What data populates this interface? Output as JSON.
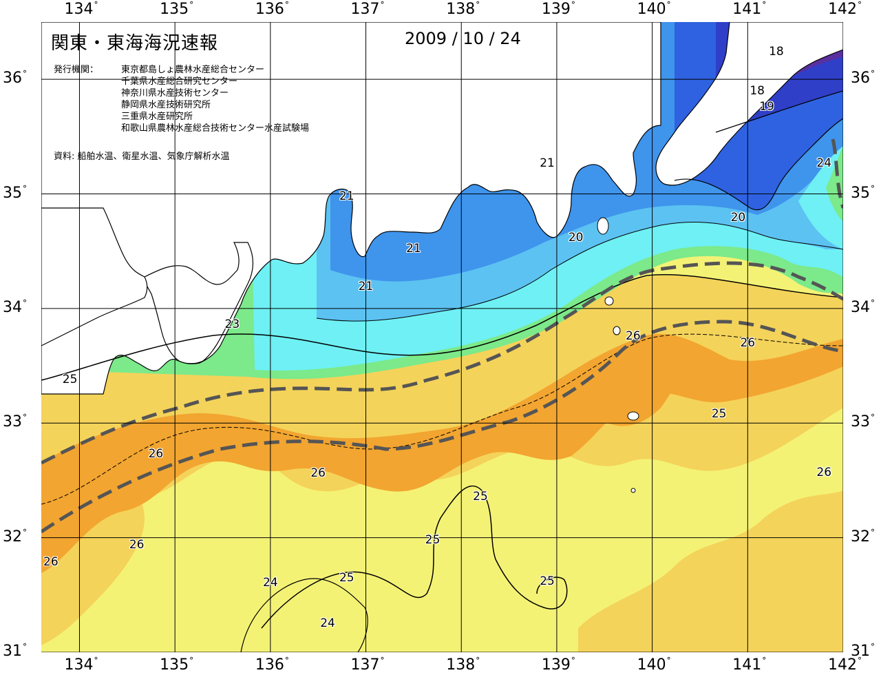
{
  "title": "関東・東海海況速報",
  "date": "2009 / 10 / 24",
  "issuer_label": "発行機関：",
  "issuers": [
    "東京都島しょ農林水産総合センター",
    "千葉県水産総合研究センター",
    "神奈川県水産技術センター",
    "静岡県水産技術研究所",
    "三重県水産研究所",
    "和歌山県農林水産総合技術センター水産試験場"
  ],
  "source": "資料: 船舶水温、衛星水温、気象庁解析水温",
  "axes": {
    "longitudes": [
      "134°",
      "135°",
      "136°",
      "137°",
      "138°",
      "139°",
      "140°",
      "141°",
      "142°"
    ],
    "latitudes": [
      "36°",
      "35°",
      "34°",
      "33°",
      "32°",
      "31°"
    ],
    "lon_range": [
      133.6,
      142.0
    ],
    "lat_range": [
      31.0,
      36.5
    ]
  },
  "contour_labels": [
    {
      "text": "18",
      "lon": 141.3,
      "lat": 36.24
    },
    {
      "text": "18",
      "lon": 141.1,
      "lat": 35.9
    },
    {
      "text": "19",
      "lon": 141.2,
      "lat": 35.76
    },
    {
      "text": "24",
      "lon": 141.8,
      "lat": 35.27
    },
    {
      "text": "21",
      "lon": 138.9,
      "lat": 35.27
    },
    {
      "text": "21",
      "lon": 136.8,
      "lat": 34.98
    },
    {
      "text": "20",
      "lon": 140.9,
      "lat": 34.79
    },
    {
      "text": "20",
      "lon": 139.2,
      "lat": 34.62
    },
    {
      "text": "21",
      "lon": 137.5,
      "lat": 34.52
    },
    {
      "text": "21",
      "lon": 137.0,
      "lat": 34.19
    },
    {
      "text": "23",
      "lon": 135.6,
      "lat": 33.86
    },
    {
      "text": "26",
      "lon": 139.8,
      "lat": 33.76
    },
    {
      "text": "26",
      "lon": 141.0,
      "lat": 33.7
    },
    {
      "text": "25",
      "lon": 133.9,
      "lat": 33.38
    },
    {
      "text": "25",
      "lon": 140.7,
      "lat": 33.08
    },
    {
      "text": "26",
      "lon": 134.8,
      "lat": 32.73
    },
    {
      "text": "26",
      "lon": 136.5,
      "lat": 32.56
    },
    {
      "text": "26",
      "lon": 141.8,
      "lat": 32.57
    },
    {
      "text": "25",
      "lon": 138.2,
      "lat": 32.36
    },
    {
      "text": "26",
      "lon": 134.6,
      "lat": 31.94
    },
    {
      "text": "25",
      "lon": 137.7,
      "lat": 31.98
    },
    {
      "text": "26",
      "lon": 133.7,
      "lat": 31.79
    },
    {
      "text": "25",
      "lon": 136.8,
      "lat": 31.65
    },
    {
      "text": "24",
      "lon": 136.0,
      "lat": 31.61
    },
    {
      "text": "25",
      "lon": 138.9,
      "lat": 31.62
    },
    {
      "text": "24",
      "lon": 136.6,
      "lat": 31.25
    }
  ],
  "temperature_colors": {
    "18": "#5a2f9e",
    "19": "#2f3fc8",
    "20": "#2f62e0",
    "21": "#3f94ec",
    "22": "#5cc2f2",
    "23": "#6ef0f4",
    "24": "#7ce98a",
    "25": "#f4f275",
    "26": "#f4d35a",
    "27": "#f2a530"
  },
  "kuroshio_path_color": "#555555",
  "land_color": "#ffffff",
  "gridline_color": "#000000"
}
